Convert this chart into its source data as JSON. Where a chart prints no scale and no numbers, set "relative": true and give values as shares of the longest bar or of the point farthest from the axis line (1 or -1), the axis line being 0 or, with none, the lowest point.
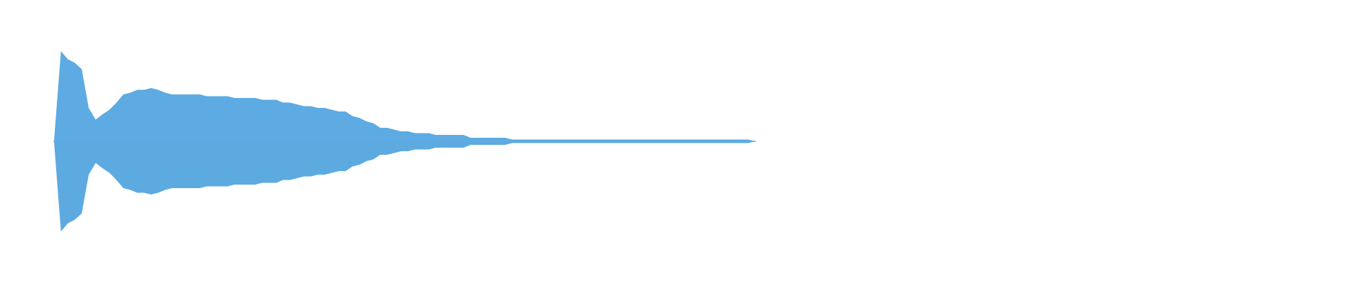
{
  "chart_data": {
    "type": "area",
    "relative": true,
    "categories": [
      null,
      null,
      null,
      null,
      null,
      null,
      null,
      null,
      null,
      null,
      null,
      null,
      null,
      null,
      null,
      null,
      null,
      null,
      null,
      null,
      null,
      null,
      null,
      null,
      null,
      null,
      null,
      null,
      null,
      null,
      null,
      null,
      null,
      null,
      null,
      null,
      null,
      null,
      null,
      null,
      null,
      null,
      null,
      null,
      null,
      null,
      null,
      null,
      null,
      null,
      null,
      null,
      null,
      null,
      null,
      null,
      null,
      null,
      null,
      null,
      null,
      null,
      null,
      null,
      null,
      null,
      null,
      null,
      null,
      null,
      null,
      null,
      null,
      null,
      null,
      null,
      null,
      null,
      null,
      null,
      null,
      null,
      null,
      null,
      null,
      null,
      null,
      null,
      null,
      null,
      null,
      null,
      null,
      null,
      null,
      null,
      null,
      null,
      null,
      null,
      null,
      null
    ],
    "series": [
      {
        "color": "#5dabe2",
        "values": [
          0,
          1.0,
          0.91,
          0.87,
          0.8,
          0.37,
          0.24,
          0.3,
          0.35,
          0.43,
          0.52,
          0.54,
          0.57,
          0.57,
          0.59,
          0.57,
          0.54,
          0.52,
          0.52,
          0.52,
          0.52,
          0.52,
          0.5,
          0.5,
          0.5,
          0.5,
          0.48,
          0.48,
          0.48,
          0.48,
          0.46,
          0.46,
          0.46,
          0.43,
          0.43,
          0.41,
          0.39,
          0.39,
          0.37,
          0.37,
          0.35,
          0.33,
          0.33,
          0.28,
          0.26,
          0.22,
          0.2,
          0.15,
          0.15,
          0.13,
          0.11,
          0.11,
          0.09,
          0.09,
          0.09,
          0.07,
          0.07,
          0.07,
          0.07,
          0.07,
          0.04,
          0.04,
          0.04,
          0.04,
          0.04,
          0.04,
          0.02,
          0.02,
          0.02,
          0.02,
          0.02,
          0.02,
          0.02,
          0.02,
          0.02,
          0.02,
          0.02,
          0.02,
          0.02,
          0.02,
          0.02,
          0.02,
          0.02,
          0.02,
          0.02,
          0.02,
          0.02,
          0.02,
          0.02,
          0.02,
          0.02,
          0.02,
          0.02,
          0.02,
          0.02,
          0.02,
          0.02,
          0.02,
          0.02,
          0.02,
          0.02,
          0
        ]
      },
      {
        "color": "#5daae1",
        "values": [
          0,
          -1.0,
          -0.91,
          -0.87,
          -0.8,
          -0.37,
          -0.24,
          -0.3,
          -0.35,
          -0.43,
          -0.52,
          -0.54,
          -0.57,
          -0.57,
          -0.59,
          -0.57,
          -0.54,
          -0.52,
          -0.52,
          -0.52,
          -0.52,
          -0.52,
          -0.5,
          -0.5,
          -0.5,
          -0.5,
          -0.48,
          -0.48,
          -0.48,
          -0.48,
          -0.46,
          -0.46,
          -0.46,
          -0.43,
          -0.43,
          -0.41,
          -0.39,
          -0.39,
          -0.37,
          -0.37,
          -0.35,
          -0.33,
          -0.33,
          -0.28,
          -0.26,
          -0.22,
          -0.2,
          -0.15,
          -0.15,
          -0.13,
          -0.11,
          -0.11,
          -0.09,
          -0.09,
          -0.09,
          -0.07,
          -0.07,
          -0.07,
          -0.07,
          -0.07,
          -0.04,
          -0.04,
          -0.04,
          -0.04,
          -0.04,
          -0.04,
          -0.02,
          -0.02,
          -0.02,
          -0.02,
          -0.02,
          -0.02,
          -0.02,
          -0.02,
          -0.02,
          -0.02,
          -0.02,
          -0.02,
          -0.02,
          -0.02,
          -0.02,
          -0.02,
          -0.02,
          -0.02,
          -0.02,
          -0.02,
          -0.02,
          -0.02,
          -0.02,
          -0.02,
          -0.02,
          -0.02,
          -0.02,
          -0.02,
          -0.02,
          -0.02,
          -0.02,
          -0.02,
          -0.02,
          -0.02,
          -0.02,
          0
        ]
      }
    ]
  }
}
